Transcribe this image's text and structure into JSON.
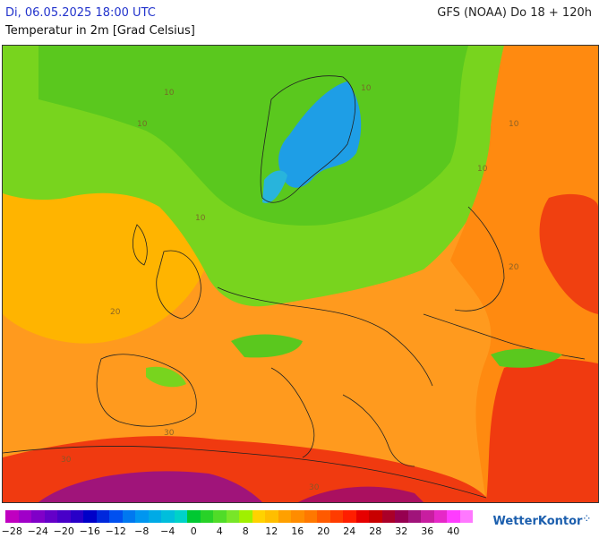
{
  "header": {
    "date": "Di, 06.05.2025 18:00 UTC",
    "model": "GFS (NOAA) Do 18 + 120h",
    "parameter": "Temperatur in 2m [Grad Celsius]"
  },
  "map": {
    "isoline_labels": [
      "10",
      "10",
      "10",
      "10",
      "10",
      "10",
      "20",
      "20",
      "30",
      "30",
      "30"
    ]
  },
  "legend": {
    "colors": [
      "#c000c0",
      "#a000c8",
      "#8000c8",
      "#6400c8",
      "#4800c8",
      "#2800c8",
      "#0000c8",
      "#0028dc",
      "#0050f0",
      "#0078f0",
      "#0096f0",
      "#00aae6",
      "#00bedc",
      "#00d2c8",
      "#00c832",
      "#28d228",
      "#50dc28",
      "#78e628",
      "#a0f000",
      "#ffd200",
      "#ffbe00",
      "#ffa000",
      "#ff8c00",
      "#ff7800",
      "#ff5a00",
      "#ff3c00",
      "#ff1e00",
      "#e60000",
      "#c80000",
      "#aa0028",
      "#960050",
      "#a0147a",
      "#c81ea0",
      "#e628c8",
      "#ff3cff",
      "#ff78ff"
    ],
    "ticks": [
      "−28",
      "−24",
      "−20",
      "−16",
      "−12",
      "−8",
      "−4",
      "0",
      "4",
      "8",
      "12",
      "16",
      "20",
      "24",
      "28",
      "32",
      "36",
      "40"
    ]
  },
  "brand": {
    "name": "WetterKontor"
  }
}
